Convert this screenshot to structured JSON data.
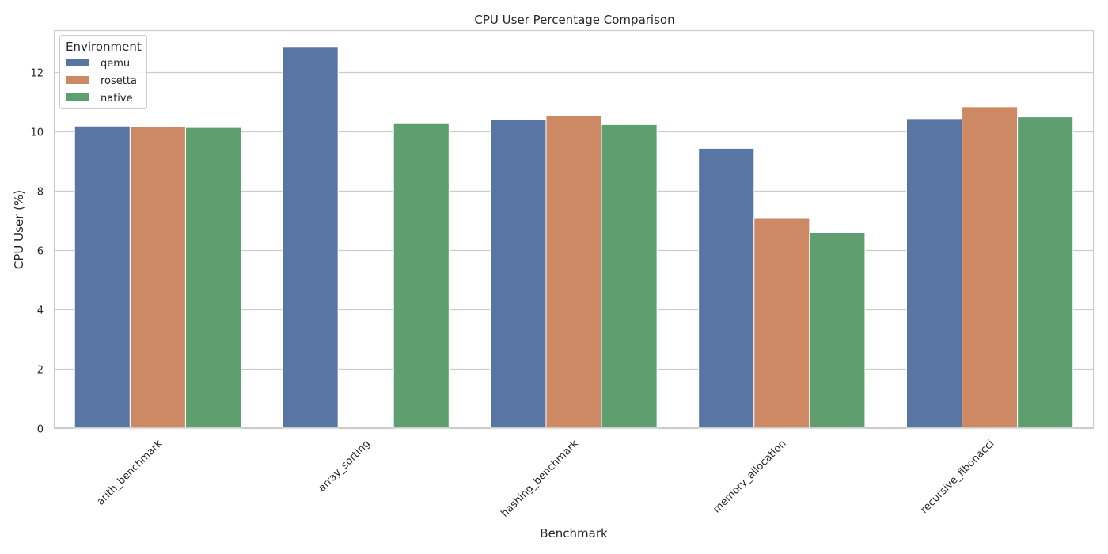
{
  "chart_data": {
    "type": "bar",
    "title": "CPU User Percentage Comparison",
    "xlabel": "Benchmark",
    "ylabel": "CPU User (%)",
    "categories": [
      "arith_benchmark",
      "array_sorting",
      "hashing_benchmark",
      "memory_allocation",
      "recursive_fibonacci"
    ],
    "series": [
      {
        "name": "qemu",
        "color": "#5975a4",
        "values": [
          10.17,
          12.82,
          10.38,
          9.42,
          10.42
        ]
      },
      {
        "name": "rosetta",
        "color": "#cc8963",
        "values": [
          10.15,
          0,
          10.52,
          7.06,
          10.82
        ]
      },
      {
        "name": "native",
        "color": "#5f9e6e",
        "values": [
          10.12,
          10.25,
          10.22,
          6.58,
          10.48
        ]
      }
    ],
    "ylim": [
      0,
      13.4
    ],
    "yticks": [
      0,
      2,
      4,
      6,
      8,
      10,
      12
    ],
    "grid": "y",
    "legend": {
      "title": "Environment",
      "position": "top-left"
    }
  }
}
